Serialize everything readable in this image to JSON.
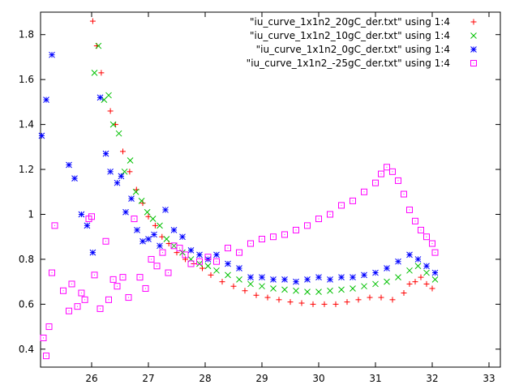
{
  "chart_data": {
    "type": "scatter",
    "xlim": [
      25.1,
      33.2
    ],
    "ylim": [
      0.32,
      1.9
    ],
    "xticks": [
      26,
      27,
      28,
      29,
      30,
      31,
      32,
      33
    ],
    "yticks": [
      0.4,
      0.6,
      0.8,
      1.0,
      1.2,
      1.4,
      1.6,
      1.8
    ],
    "xtick_labels": [
      "26",
      "27",
      "28",
      "29",
      "30",
      "31",
      "32",
      "33"
    ],
    "ytick_labels": [
      "0.4",
      "0.6",
      "0.8",
      "1",
      "1.2",
      "1.4",
      "1.6",
      "1.8"
    ],
    "grid": false,
    "legend_position": "top-right",
    "series": [
      {
        "name": "\"iu_curve_1x1n2_20gC_der.txt\" using 1:4",
        "color": "#ff0000",
        "marker": "plus",
        "x": [
          26.02,
          26.09,
          26.17,
          26.33,
          26.42,
          26.55,
          26.67,
          26.79,
          26.9,
          27.0,
          27.12,
          27.24,
          27.36,
          27.5,
          27.65,
          27.8,
          27.95,
          28.1,
          28.3,
          28.5,
          28.7,
          28.9,
          29.1,
          29.3,
          29.5,
          29.7,
          29.9,
          30.1,
          30.3,
          30.5,
          30.7,
          30.9,
          31.1,
          31.3,
          31.5,
          31.6,
          31.7,
          31.8,
          31.9,
          32.0
        ],
        "y": [
          1.86,
          1.75,
          1.63,
          1.46,
          1.4,
          1.28,
          1.19,
          1.11,
          1.05,
          0.99,
          0.95,
          0.9,
          0.87,
          0.83,
          0.8,
          0.78,
          0.76,
          0.73,
          0.7,
          0.68,
          0.66,
          0.64,
          0.63,
          0.62,
          0.61,
          0.605,
          0.6,
          0.6,
          0.6,
          0.61,
          0.62,
          0.63,
          0.63,
          0.62,
          0.65,
          0.69,
          0.7,
          0.72,
          0.69,
          0.67
        ]
      },
      {
        "name": "\"iu_curve_1x1n2_10gC_der.txt\" using 1:4",
        "color": "#00c000",
        "marker": "cross",
        "x": [
          26.05,
          26.12,
          26.22,
          26.3,
          26.38,
          26.48,
          26.58,
          26.68,
          26.78,
          26.88,
          26.98,
          27.08,
          27.2,
          27.32,
          27.45,
          27.6,
          27.75,
          27.9,
          28.05,
          28.2,
          28.4,
          28.6,
          28.8,
          29.0,
          29.2,
          29.4,
          29.6,
          29.8,
          30.0,
          30.2,
          30.4,
          30.6,
          30.8,
          31.0,
          31.2,
          31.4,
          31.6,
          31.75,
          31.9,
          32.05
        ],
        "y": [
          1.63,
          1.75,
          1.51,
          1.53,
          1.4,
          1.36,
          1.19,
          1.24,
          1.1,
          1.06,
          1.01,
          0.98,
          0.95,
          0.89,
          0.86,
          0.83,
          0.8,
          0.78,
          0.77,
          0.75,
          0.73,
          0.71,
          0.69,
          0.68,
          0.67,
          0.665,
          0.66,
          0.655,
          0.655,
          0.66,
          0.665,
          0.67,
          0.68,
          0.69,
          0.7,
          0.72,
          0.75,
          0.77,
          0.74,
          0.71
        ]
      },
      {
        "name": "\"iu_curve_1x1n2_0gC_der.txt\" using 1:4",
        "color": "#0000ff",
        "marker": "star",
        "x": [
          25.12,
          25.2,
          25.3,
          25.6,
          25.7,
          25.82,
          25.92,
          26.02,
          26.15,
          26.25,
          26.33,
          26.45,
          26.52,
          26.6,
          26.7,
          26.8,
          26.9,
          27.0,
          27.1,
          27.2,
          27.3,
          27.45,
          27.6,
          27.75,
          27.9,
          28.05,
          28.2,
          28.4,
          28.6,
          28.8,
          29.0,
          29.2,
          29.4,
          29.6,
          29.8,
          30.0,
          30.2,
          30.4,
          30.6,
          30.8,
          31.0,
          31.2,
          31.4,
          31.6,
          31.75,
          31.9,
          32.05
        ],
        "y": [
          1.35,
          1.51,
          1.71,
          1.22,
          1.16,
          1.0,
          0.95,
          0.83,
          1.52,
          1.27,
          1.19,
          1.14,
          1.17,
          1.01,
          1.07,
          0.93,
          0.88,
          0.89,
          0.91,
          0.86,
          1.02,
          0.93,
          0.9,
          0.84,
          0.82,
          0.8,
          0.82,
          0.78,
          0.76,
          0.72,
          0.72,
          0.71,
          0.71,
          0.7,
          0.71,
          0.72,
          0.71,
          0.72,
          0.72,
          0.73,
          0.74,
          0.76,
          0.79,
          0.82,
          0.8,
          0.77,
          0.74
        ]
      },
      {
        "name": "\"iu_curve_1x1n2_-25gC_der.txt\" using 1:4",
        "color": "#ff00ff",
        "marker": "square-dot",
        "x": [
          25.15,
          25.2,
          25.25,
          25.3,
          25.35,
          25.5,
          25.6,
          25.65,
          25.75,
          25.82,
          25.88,
          25.95,
          26.0,
          26.05,
          26.15,
          26.25,
          26.3,
          26.38,
          26.45,
          26.55,
          26.65,
          26.75,
          26.85,
          26.95,
          27.05,
          27.15,
          27.25,
          27.35,
          27.45,
          27.55,
          27.65,
          27.75,
          27.9,
          28.05,
          28.2,
          28.4,
          28.6,
          28.8,
          29.0,
          29.2,
          29.4,
          29.6,
          29.8,
          30.0,
          30.2,
          30.4,
          30.6,
          30.8,
          31.0,
          31.1,
          31.2,
          31.3,
          31.4,
          31.5,
          31.6,
          31.7,
          31.8,
          31.9,
          32.0,
          32.05
        ],
        "y": [
          0.45,
          0.37,
          0.5,
          0.74,
          0.95,
          0.66,
          0.57,
          0.69,
          0.59,
          0.65,
          0.62,
          0.98,
          0.99,
          0.73,
          0.58,
          0.88,
          0.62,
          0.71,
          0.68,
          0.72,
          0.63,
          0.98,
          0.72,
          0.67,
          0.8,
          0.77,
          0.83,
          0.74,
          0.86,
          0.85,
          0.82,
          0.78,
          0.79,
          0.81,
          0.79,
          0.85,
          0.83,
          0.87,
          0.89,
          0.9,
          0.91,
          0.93,
          0.95,
          0.98,
          1.0,
          1.04,
          1.06,
          1.1,
          1.14,
          1.18,
          1.21,
          1.19,
          1.15,
          1.09,
          1.02,
          0.97,
          0.93,
          0.9,
          0.87,
          0.83
        ]
      }
    ]
  }
}
